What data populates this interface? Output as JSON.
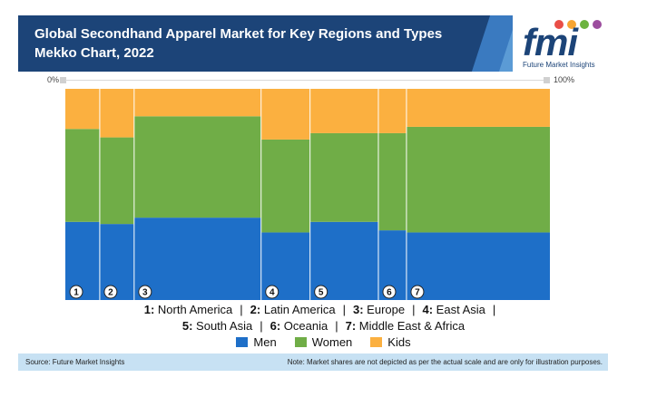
{
  "header": {
    "title": "Global Secondhand Apparel Market for Key Regions and Types Mekko Chart, 2022"
  },
  "logo": {
    "text": "fmi",
    "tagline": "Future Market Insights",
    "dot_colors": [
      "#e94e47",
      "#f7a532",
      "#6cb33f",
      "#9c4d9e"
    ]
  },
  "scale": {
    "min_label": "0%",
    "max_label": "100%"
  },
  "chart_data": {
    "type": "mekko",
    "title": "Global Secondhand Apparel Market for Key Regions and Types Mekko Chart, 2022",
    "ylim": [
      0,
      100
    ],
    "xlim": [
      0,
      100
    ],
    "categories": [
      "1",
      "2",
      "3",
      "4",
      "5",
      "6",
      "7"
    ],
    "widths": [
      7.1,
      7.1,
      26.2,
      10.1,
      14.1,
      5.8,
      29.6
    ],
    "series": [
      {
        "name": "Men",
        "color": "#1e6fc8",
        "values": [
          37,
          36,
          39,
          32,
          37,
          33,
          32
        ]
      },
      {
        "name": "Women",
        "color": "#70ad47",
        "values": [
          44,
          41,
          48,
          44,
          42,
          46,
          50
        ]
      },
      {
        "name": "Kids",
        "color": "#fbb040",
        "values": [
          19,
          23,
          13,
          24,
          21,
          21,
          18
        ]
      }
    ]
  },
  "region_legend": {
    "line1": [
      {
        "num": "1:",
        "name": "North America"
      },
      {
        "num": "2:",
        "name": "Latin America"
      },
      {
        "num": "3:",
        "name": "Europe"
      },
      {
        "num": "4:",
        "name": "East Asia"
      }
    ],
    "line2": [
      {
        "num": "5:",
        "name": "South Asia"
      },
      {
        "num": "6:",
        "name": "Oceania"
      },
      {
        "num": "7:",
        "name": "Middle East & Africa"
      }
    ],
    "separator": "|"
  },
  "footer": {
    "source": "Source: Future Market Insights",
    "note": "Note: Market shares are not depicted as per the actual scale and are only for illustration purposes."
  }
}
